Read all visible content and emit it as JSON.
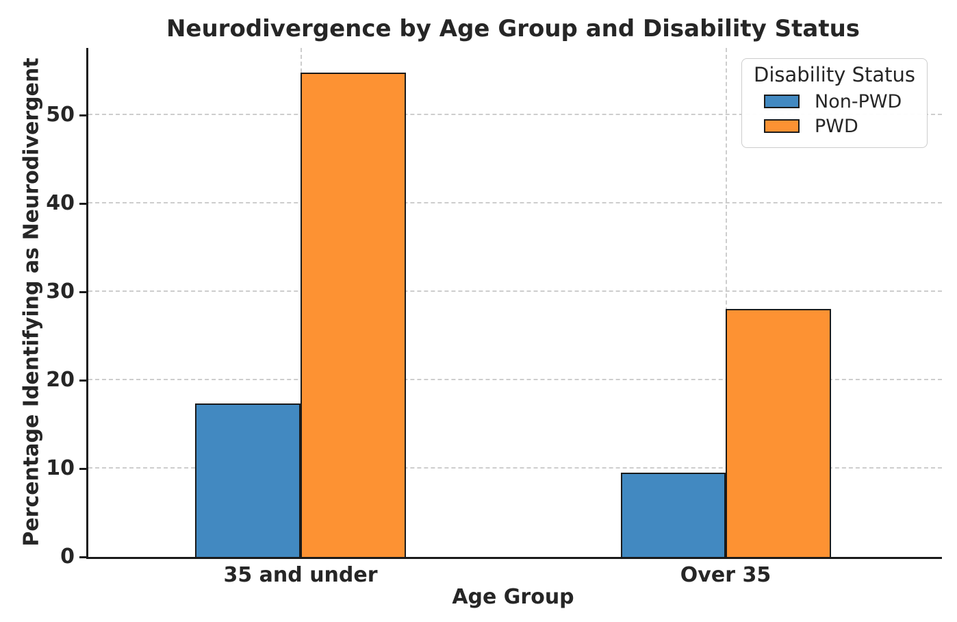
{
  "chart_data": {
    "type": "bar",
    "title": "Neurodivergence by Age Group and Disability Status",
    "xlabel": "Age Group",
    "ylabel": "Percentage Identifying as Neurodivergent",
    "categories": [
      "35 and under",
      "Over 35"
    ],
    "series": [
      {
        "name": "Non-PWD",
        "color": "#4289c1",
        "values": [
          17.4,
          9.5
        ]
      },
      {
        "name": "PWD",
        "color": "#fd9233",
        "values": [
          54.8,
          28.1
        ]
      }
    ],
    "ylim": [
      0,
      57.6
    ],
    "yticks": [
      0,
      10,
      20,
      30,
      40,
      50
    ],
    "grid": "dashed",
    "bar_edge_color": "#1a1a1a",
    "legend": {
      "title": "Disability Status",
      "position": "upper right"
    }
  }
}
